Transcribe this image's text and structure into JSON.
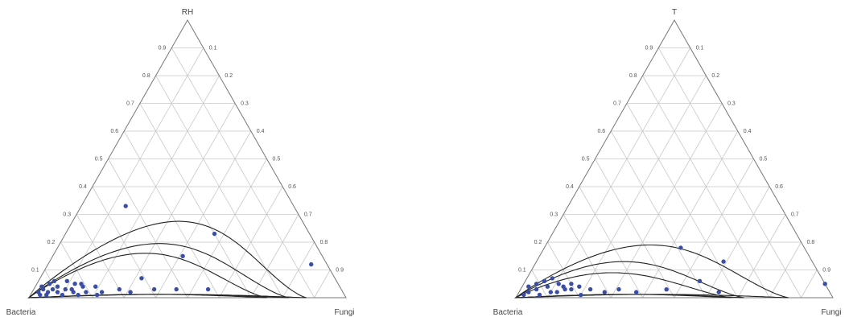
{
  "chart_data": [
    {
      "type": "scatter",
      "subtype": "ternary",
      "vertices": {
        "top": "RH",
        "left": "Bacteria",
        "right": "Fungi"
      },
      "tick_labels": {
        "left_edge": [
          "0.1",
          "0.2",
          "0.3",
          "0.4",
          "0.5",
          "0.6",
          "0.7",
          "0.8",
          "0.9"
        ],
        "right_edge": [
          "0.1",
          "0.2",
          "0.3",
          "0.4",
          "0.5",
          "0.6",
          "0.7",
          "0.8",
          "0.9"
        ]
      },
      "grid": true,
      "point_color": "#3b4ea6",
      "points": [
        {
          "top": 0.33,
          "right": 0.14
        },
        {
          "top": 0.23,
          "right": 0.47
        },
        {
          "top": 0.12,
          "right": 0.83
        },
        {
          "top": 0.15,
          "right": 0.41
        },
        {
          "top": 0.07,
          "right": 0.32
        },
        {
          "top": 0.03,
          "right": 0.55
        },
        {
          "top": 0.03,
          "right": 0.45
        },
        {
          "top": 0.03,
          "right": 0.38
        },
        {
          "top": 0.02,
          "right": 0.31
        },
        {
          "top": 0.03,
          "right": 0.27
        },
        {
          "top": 0.02,
          "right": 0.22
        },
        {
          "top": 0.01,
          "right": 0.21
        },
        {
          "top": 0.04,
          "right": 0.19
        },
        {
          "top": 0.02,
          "right": 0.17
        },
        {
          "top": 0.05,
          "right": 0.12
        },
        {
          "top": 0.03,
          "right": 0.1
        },
        {
          "top": 0.02,
          "right": 0.08
        },
        {
          "top": 0.04,
          "right": 0.07
        },
        {
          "top": 0.06,
          "right": 0.05
        },
        {
          "top": 0.05,
          "right": 0.04
        },
        {
          "top": 0.03,
          "right": 0.03
        },
        {
          "top": 0.02,
          "right": 0.02
        },
        {
          "top": 0.04,
          "right": 0.02
        },
        {
          "top": 0.01,
          "right": 0.05
        },
        {
          "top": 0.01,
          "right": 0.1
        },
        {
          "top": 0.02,
          "right": 0.13
        },
        {
          "top": 0.04,
          "right": 0.15
        },
        {
          "top": 0.03,
          "right": 0.06
        },
        {
          "top": 0.06,
          "right": 0.09
        },
        {
          "top": 0.05,
          "right": 0.14
        },
        {
          "top": 0.02,
          "right": 0.05
        },
        {
          "top": 0.01,
          "right": 0.03
        },
        {
          "top": 0.03,
          "right": 0.12
        },
        {
          "top": 0.01,
          "right": 0.15
        }
      ],
      "contours": [
        {
          "apex_top": 0.275,
          "tip_right": 0.875
        },
        {
          "apex_top": 0.195,
          "tip_right": 0.82
        },
        {
          "apex_top": 0.16,
          "tip_right": 0.75
        }
      ]
    },
    {
      "type": "scatter",
      "subtype": "ternary",
      "vertices": {
        "top": "T",
        "left": "Bacteria",
        "right": "Fungi"
      },
      "tick_labels": {
        "left_edge": [
          "0.1",
          "0.2",
          "0.3",
          "0.4",
          "0.5",
          "0.6",
          "0.7",
          "0.8",
          "0.9"
        ],
        "right_edge": [
          "0.1",
          "0.2",
          "0.3",
          "0.4",
          "0.5",
          "0.6",
          "0.7",
          "0.8",
          "0.9"
        ]
      },
      "grid": true,
      "point_color": "#3b4ea6",
      "points": [
        {
          "top": 0.18,
          "right": 0.43
        },
        {
          "top": 0.13,
          "right": 0.59
        },
        {
          "top": 0.05,
          "right": 0.95
        },
        {
          "top": 0.06,
          "right": 0.55
        },
        {
          "top": 0.02,
          "right": 0.63
        },
        {
          "top": 0.03,
          "right": 0.46
        },
        {
          "top": 0.02,
          "right": 0.37
        },
        {
          "top": 0.03,
          "right": 0.31
        },
        {
          "top": 0.02,
          "right": 0.27
        },
        {
          "top": 0.03,
          "right": 0.22
        },
        {
          "top": 0.01,
          "right": 0.2
        },
        {
          "top": 0.04,
          "right": 0.18
        },
        {
          "top": 0.03,
          "right": 0.14
        },
        {
          "top": 0.05,
          "right": 0.11
        },
        {
          "top": 0.02,
          "right": 0.1
        },
        {
          "top": 0.04,
          "right": 0.08
        },
        {
          "top": 0.06,
          "right": 0.06
        },
        {
          "top": 0.03,
          "right": 0.05
        },
        {
          "top": 0.05,
          "right": 0.04
        },
        {
          "top": 0.02,
          "right": 0.03
        },
        {
          "top": 0.04,
          "right": 0.02
        },
        {
          "top": 0.01,
          "right": 0.07
        },
        {
          "top": 0.02,
          "right": 0.12
        },
        {
          "top": 0.04,
          "right": 0.13
        },
        {
          "top": 0.03,
          "right": 0.16
        },
        {
          "top": 0.01,
          "right": 0.02
        },
        {
          "top": 0.07,
          "right": 0.08
        },
        {
          "top": 0.05,
          "right": 0.15
        }
      ],
      "contours": [
        {
          "apex_top": 0.19,
          "tip_right": 0.86
        },
        {
          "apex_top": 0.13,
          "tip_right": 0.72
        },
        {
          "apex_top": 0.09,
          "tip_right": 0.68
        }
      ]
    }
  ]
}
